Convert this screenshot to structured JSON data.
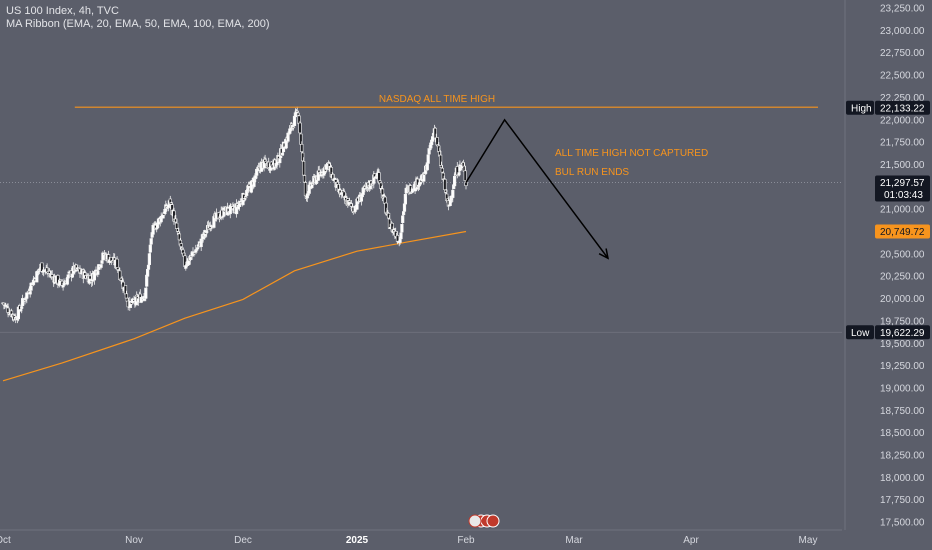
{
  "legend": {
    "symbol_line": "US 100 Index, 4h, TVC",
    "indicator_line": "MA Ribbon (EMA, 20, EMA, 50, EMA, 100, EMA, 200)"
  },
  "colors": {
    "background": "#5b5e6a",
    "candle": "#f2f2f2",
    "ema": "#f7941d",
    "annotation": "#f7941d",
    "arrow": "#000000",
    "axis_text": "#d5d7de",
    "tag_dark": "#131722",
    "tag_ema": "#f7941d"
  },
  "chart_data": {
    "type": "candlestick",
    "y_axis": {
      "min": 17375,
      "max": 23300,
      "ticks": [
        23250,
        23000,
        22750,
        22500,
        22250,
        22000,
        21750,
        21500,
        21250,
        21000,
        20750,
        20500,
        20250,
        20000,
        19750,
        19500,
        19250,
        19000,
        18750,
        18500,
        18250,
        18000,
        17750,
        17500
      ],
      "tick_labels": [
        "23,250.00",
        "23,000.00",
        "22,750.00",
        "22,500.00",
        "22,250.00",
        "22,000.00",
        "21,750.00",
        "21,500.00",
        "21,250.00",
        "21,000.00",
        "20,750.00",
        "20,500.00",
        "20,250.00",
        "20,000.00",
        "19,750.00",
        "19,500.00",
        "19,250.00",
        "19,000.00",
        "18,750.00",
        "18,500.00",
        "18,250.00",
        "18,000.00",
        "17,750.00",
        "17,500.00"
      ]
    },
    "x_axis": {
      "labels": [
        {
          "label": "Oct",
          "date": "2024-10-01",
          "bold": false
        },
        {
          "label": "Nov",
          "date": "2024-11-01",
          "bold": false
        },
        {
          "label": "Dec",
          "date": "2024-12-01",
          "bold": false
        },
        {
          "label": "2025",
          "date": "2025-01-01",
          "bold": true
        },
        {
          "label": "Feb",
          "date": "2025-02-01",
          "bold": false
        },
        {
          "label": "Mar",
          "date": "2025-03-01",
          "bold": false
        },
        {
          "label": "Apr",
          "date": "2025-04-01",
          "bold": false
        },
        {
          "label": "May",
          "date": "2025-05-01",
          "bold": false
        }
      ]
    },
    "price_waypoints": [
      {
        "date": "2024-10-01",
        "close": 19950
      },
      {
        "date": "2024-10-04",
        "close": 19780
      },
      {
        "date": "2024-10-08",
        "close": 20180
      },
      {
        "date": "2024-10-10",
        "close": 20360
      },
      {
        "date": "2024-10-15",
        "close": 20150
      },
      {
        "date": "2024-10-18",
        "close": 20330
      },
      {
        "date": "2024-10-22",
        "close": 20220
      },
      {
        "date": "2024-10-25",
        "close": 20490
      },
      {
        "date": "2024-10-28",
        "close": 20380
      },
      {
        "date": "2024-10-31",
        "close": 19920
      },
      {
        "date": "2024-11-04",
        "close": 20050
      },
      {
        "date": "2024-11-06",
        "close": 20750
      },
      {
        "date": "2024-11-11",
        "close": 21080
      },
      {
        "date": "2024-11-15",
        "close": 20380
      },
      {
        "date": "2024-11-19",
        "close": 20600
      },
      {
        "date": "2024-11-22",
        "close": 20840
      },
      {
        "date": "2024-11-26",
        "close": 20980
      },
      {
        "date": "2024-11-29",
        "close": 21000
      },
      {
        "date": "2024-12-03",
        "close": 21250
      },
      {
        "date": "2024-12-06",
        "close": 21500
      },
      {
        "date": "2024-12-10",
        "close": 21500
      },
      {
        "date": "2024-12-13",
        "close": 21800
      },
      {
        "date": "2024-12-16",
        "close": 22100
      },
      {
        "date": "2024-12-18",
        "close": 21150
      },
      {
        "date": "2024-12-20",
        "close": 21300
      },
      {
        "date": "2024-12-24",
        "close": 21500
      },
      {
        "date": "2024-12-27",
        "close": 21200
      },
      {
        "date": "2024-12-31",
        "close": 21000
      },
      {
        "date": "2025-01-03",
        "close": 21200
      },
      {
        "date": "2025-01-07",
        "close": 21400
      },
      {
        "date": "2025-01-10",
        "close": 20850
      },
      {
        "date": "2025-01-13",
        "close": 20650
      },
      {
        "date": "2025-01-15",
        "close": 21200
      },
      {
        "date": "2025-01-20",
        "close": 21350
      },
      {
        "date": "2025-01-23",
        "close": 21900
      },
      {
        "date": "2025-01-27",
        "close": 21000
      },
      {
        "date": "2025-01-29",
        "close": 21400
      },
      {
        "date": "2025-01-31",
        "close": 21500
      },
      {
        "date": "2025-02-01",
        "close": 21297.57
      }
    ],
    "ema_200": [
      {
        "date": "2024-10-01",
        "close": 19080
      },
      {
        "date": "2024-10-15",
        "close": 19280
      },
      {
        "date": "2024-11-01",
        "close": 19550
      },
      {
        "date": "2024-11-15",
        "close": 19780
      },
      {
        "date": "2024-12-01",
        "close": 19990
      },
      {
        "date": "2024-12-15",
        "close": 20310
      },
      {
        "date": "2025-01-01",
        "close": 20530
      },
      {
        "date": "2025-01-15",
        "close": 20630
      },
      {
        "date": "2025-02-01",
        "close": 20749.72
      }
    ],
    "current_price_label": "21,297.57",
    "countdown_label": "01:03:43",
    "high": {
      "label": "High",
      "value_label": "22,133.22",
      "value": 22133.22
    },
    "low": {
      "label": "Low",
      "value_label": "19,622.29",
      "value": 19622.29
    },
    "ema_label": "20,749.72",
    "current_price": 21297.57,
    "ema_value": 20749.72,
    "annotations": {
      "ath_label": "NASDAQ ALL TIME HIGH",
      "note_line1": "ALL TIME HIGH NOT CAPTURED",
      "note_line2": "BUL RUN ENDS",
      "ath_line": {
        "from_date": "2024-10-18",
        "to_date": "2025-05-01",
        "value": 22140
      }
    },
    "projection": [
      {
        "date": "2025-02-01",
        "close": 21297.57
      },
      {
        "date": "2025-02-11",
        "close": 22000
      },
      {
        "date": "2025-03-10",
        "close": 20450
      }
    ]
  }
}
